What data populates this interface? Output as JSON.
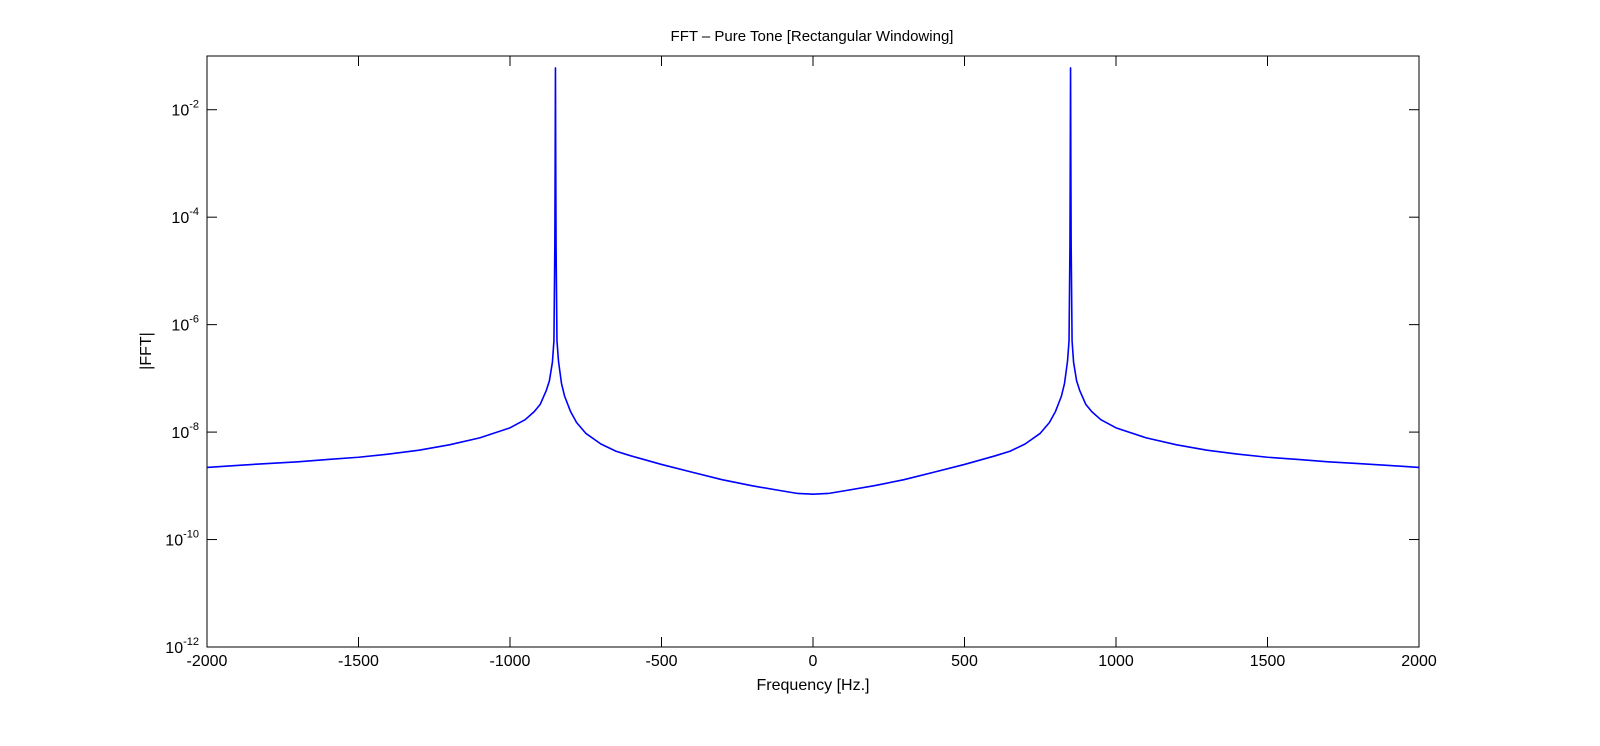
{
  "chart_data": {
    "type": "line",
    "title": "FFT – Pure Tone [Rectangular Windowing]",
    "xlabel": "Frequency [Hz.]",
    "ylabel": "|FFT|",
    "xlim": [
      -2000,
      2000
    ],
    "ylim": [
      1e-12,
      0.1
    ],
    "yscale": "log",
    "grid": false,
    "legend": "none",
    "x_ticks": [
      {
        "value": -2000,
        "label": "-2000"
      },
      {
        "value": -1500,
        "label": "-1500"
      },
      {
        "value": -1000,
        "label": "-1000"
      },
      {
        "value": -500,
        "label": "-500"
      },
      {
        "value": 0,
        "label": "0"
      },
      {
        "value": 500,
        "label": "500"
      },
      {
        "value": 1000,
        "label": "1000"
      },
      {
        "value": 1500,
        "label": "1500"
      },
      {
        "value": 2000,
        "label": "2000"
      }
    ],
    "y_ticks": [
      {
        "value": 1e-12,
        "base": "10",
        "exp": "-12"
      },
      {
        "value": 1e-10,
        "base": "10",
        "exp": "-10"
      },
      {
        "value": 1e-08,
        "base": "10",
        "exp": "-8"
      },
      {
        "value": 1e-06,
        "base": "10",
        "exp": "-6"
      },
      {
        "value": 0.0001,
        "base": "10",
        "exp": "-4"
      },
      {
        "value": 0.01,
        "base": "10",
        "exp": "-2"
      }
    ],
    "series": [
      {
        "color": "#0000ff",
        "x": [
          -2000,
          -1900,
          -1800,
          -1700,
          -1600,
          -1500,
          -1400,
          -1300,
          -1200,
          -1100,
          -1000,
          -950,
          -920,
          -900,
          -880,
          -870,
          -860,
          -855,
          -852,
          -851,
          -850,
          -849,
          -848,
          -845,
          -840,
          -830,
          -820,
          -800,
          -780,
          -750,
          -700,
          -650,
          -600,
          -500,
          -400,
          -300,
          -200,
          -100,
          -50,
          0,
          50,
          100,
          200,
          300,
          400,
          500,
          600,
          650,
          700,
          750,
          780,
          800,
          820,
          830,
          840,
          845,
          848,
          849,
          850,
          851,
          852,
          855,
          860,
          870,
          880,
          900,
          920,
          950,
          1000,
          1100,
          1200,
          1300,
          1400,
          1500,
          1600,
          1700,
          1800,
          1900,
          2000
        ],
        "y": [
          2.2e-09,
          2.4e-09,
          2.6e-09,
          2.8e-09,
          3.1e-09,
          3.4e-09,
          3.9e-09,
          4.6e-09,
          5.8e-09,
          7.8e-09,
          1.2e-08,
          1.7e-08,
          2.4e-08,
          3.3e-08,
          6e-08,
          9e-08,
          2e-07,
          5e-07,
          3e-05,
          0.001,
          0.06,
          0.001,
          3e-05,
          5e-07,
          2.1e-07,
          8e-08,
          4.7e-08,
          2.4e-08,
          1.5e-08,
          9.5e-09,
          6e-09,
          4.4e-09,
          3.6e-09,
          2.5e-09,
          1.8e-09,
          1.3e-09,
          1e-09,
          8e-10,
          7.2e-10,
          7e-10,
          7.2e-10,
          8e-10,
          1e-09,
          1.3e-09,
          1.8e-09,
          2.5e-09,
          3.6e-09,
          4.4e-09,
          6e-09,
          9.5e-09,
          1.5e-08,
          2.4e-08,
          4.7e-08,
          8e-08,
          2.1e-07,
          5e-07,
          3e-05,
          0.001,
          0.06,
          0.001,
          3e-05,
          5e-07,
          2e-07,
          9e-08,
          6e-08,
          3.3e-08,
          2.4e-08,
          1.7e-08,
          1.2e-08,
          7.8e-09,
          5.8e-09,
          4.6e-09,
          3.9e-09,
          3.4e-09,
          3.1e-09,
          2.8e-09,
          2.6e-09,
          2.4e-09,
          2.2e-09
        ]
      }
    ]
  }
}
